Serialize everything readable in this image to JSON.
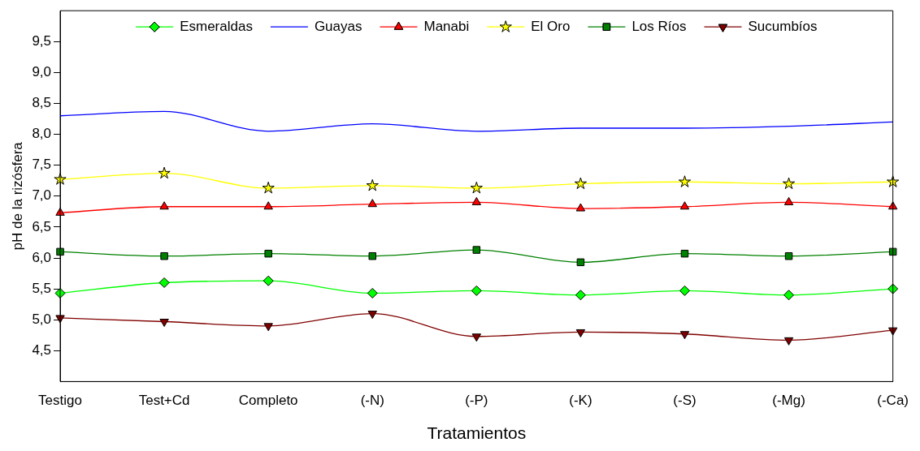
{
  "chart_data": {
    "type": "line",
    "xlabel": "Tratamientos",
    "ylabel": "pH de la rizósfera",
    "categories": [
      "Testigo",
      "Test+Cd",
      "Completo",
      "(-N)",
      "(-P)",
      "(-K)",
      "(-S)",
      "(-Mg)",
      "(-Ca)"
    ],
    "series": [
      {
        "name": "Esmeraldas",
        "color": "#00ff00",
        "marker": "diamond",
        "values": [
          5.43,
          5.6,
          5.63,
          5.43,
          5.47,
          5.4,
          5.47,
          5.4,
          5.5
        ]
      },
      {
        "name": "Guayas",
        "color": "#0000ff",
        "marker": "none",
        "values": [
          8.3,
          8.37,
          8.05,
          8.17,
          8.05,
          8.1,
          8.1,
          8.13,
          8.2
        ]
      },
      {
        "name": "Manabi",
        "color": "#ff0000",
        "marker": "triangle",
        "values": [
          6.73,
          6.83,
          6.83,
          6.87,
          6.9,
          6.8,
          6.83,
          6.9,
          6.83
        ]
      },
      {
        "name": "El Oro",
        "color": "#ffff00",
        "marker": "star",
        "values": [
          7.27,
          7.37,
          7.13,
          7.17,
          7.13,
          7.2,
          7.23,
          7.2,
          7.23
        ]
      },
      {
        "name": "Los Ríos",
        "color": "#008000",
        "marker": "square",
        "values": [
          6.1,
          6.03,
          6.07,
          6.03,
          6.13,
          5.93,
          6.07,
          6.03,
          6.1
        ]
      },
      {
        "name": "Sucumbíos",
        "color": "#800000",
        "marker": "triangle-down",
        "values": [
          5.03,
          4.97,
          4.9,
          5.1,
          4.73,
          4.8,
          4.77,
          4.67,
          4.83
        ]
      }
    ],
    "ylim": [
      4,
      10
    ],
    "yticks": [
      {
        "value": 4.5,
        "label": "4,5"
      },
      {
        "value": 5,
        "label": "5,0"
      },
      {
        "value": 5.5,
        "label": "5,5"
      },
      {
        "value": 6,
        "label": "6,0"
      },
      {
        "value": 6.5,
        "label": "6,5"
      },
      {
        "value": 7,
        "label": "7,0"
      },
      {
        "value": 7.5,
        "label": "7,5"
      },
      {
        "value": 8,
        "label": "8,0"
      },
      {
        "value": 8.5,
        "label": "8,5"
      },
      {
        "value": 9,
        "label": "9,0"
      },
      {
        "value": 9.5,
        "label": "9,5"
      }
    ],
    "grid": false,
    "legend": "top",
    "line_style": "solid"
  }
}
